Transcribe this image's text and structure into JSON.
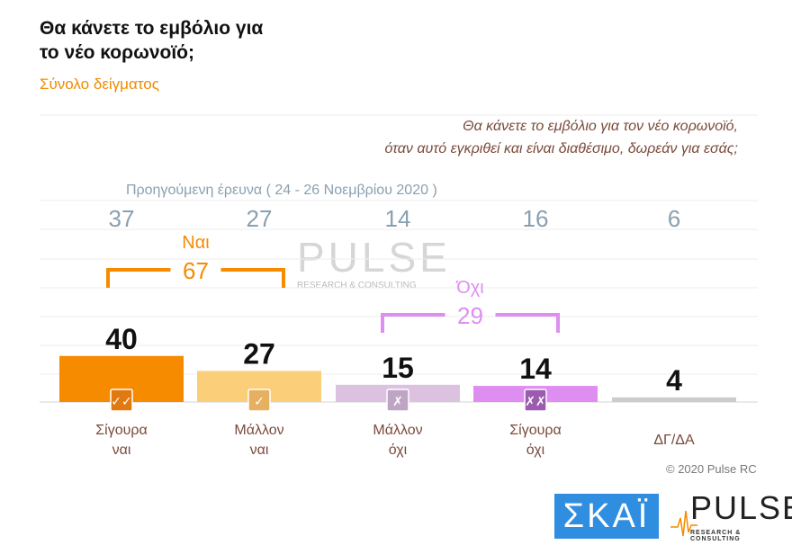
{
  "chart_data": {
    "type": "bar",
    "title": "Θα κάνετε το εμβόλιο για το νέο κορωνοϊό;",
    "subtitle": "Σύνολο δείγματος",
    "question": [
      "Θα κάνετε το εμβόλιο για τον νέο κορωνοϊό,",
      "όταν αυτό εγκριθεί και είναι διαθέσιμο, δωρεάν για εσάς;"
    ],
    "categories": [
      [
        "Σίγουρα",
        "ναι"
      ],
      [
        "Μάλλον",
        "ναι"
      ],
      [
        "Μάλλον",
        "όχι"
      ],
      [
        "Σίγουρα",
        "όχι"
      ],
      [
        "ΔΓ/ΔΑ",
        ""
      ]
    ],
    "values": [
      40,
      27,
      15,
      14,
      4
    ],
    "colors": [
      "#f68b00",
      "#fbcf7a",
      "#dcc2e0",
      "#de8ef0",
      "#cccccc"
    ],
    "icons": [
      "double-check-icon",
      "check-icon",
      "cross-icon",
      "double-cross-icon",
      null
    ],
    "icon_text": [
      "✓✓",
      "✓",
      "✗",
      "✗✗",
      ""
    ],
    "icon_colors": [
      "#e07a10",
      "#e6b060",
      "#bfa5c5",
      "#9b5cb0",
      ""
    ],
    "previous_label": "Προηγούμενη έρευνα  ( 24 - 26  Νοεμβρίου  2020 )",
    "previous_values": [
      37,
      27,
      14,
      16,
      6
    ],
    "groups": [
      {
        "label": "Ναι",
        "value": "67",
        "color": "#f68b00"
      },
      {
        "label": "Όχι",
        "value": "29",
        "color": "#de8ef0"
      }
    ],
    "ylim": [
      0,
      45
    ],
    "grid": true
  },
  "footer": {
    "copyright": "© 2020 Pulse RC",
    "skai_logo": "ΣΚΑΪ",
    "pulse_logo": "PULSE",
    "pulse_sub": "RESEARCH & CONSULTING"
  }
}
